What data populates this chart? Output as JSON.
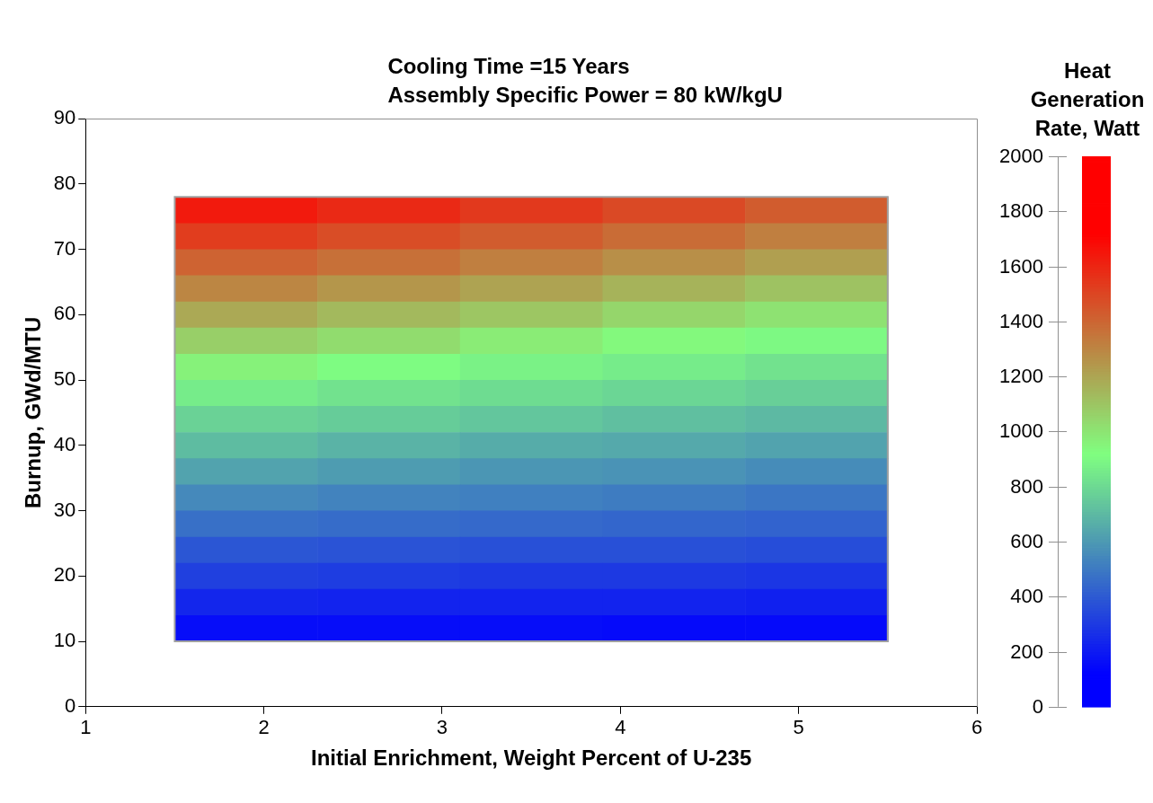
{
  "chart_data": {
    "type": "heatmap",
    "title": "Cooling Time =15 Years",
    "subtitle": "Assembly Specific Power = 80 kW/kgU",
    "xlabel": "Initial Enrichment, Weight Percent of U-235",
    "ylabel": "Burnup, GWd/MTU",
    "clabel": "Heat Generation Rate, Watt",
    "x": [
      1.9,
      2.7,
      3.5,
      4.3,
      5.1
    ],
    "y": [
      76,
      72,
      68,
      64,
      60,
      56,
      52,
      48,
      44,
      40,
      36,
      32,
      28,
      24,
      20,
      16,
      12
    ],
    "cells": [
      [
        1640,
        1590,
        1540,
        1490,
        1430
      ],
      [
        1530,
        1480,
        1430,
        1380,
        1320
      ],
      [
        1410,
        1370,
        1320,
        1270,
        1220
      ],
      [
        1300,
        1250,
        1210,
        1160,
        1110
      ],
      [
        1190,
        1140,
        1100,
        1050,
        1010
      ],
      [
        1070,
        1030,
        980,
        940,
        900
      ],
      [
        960,
        910,
        880,
        860,
        830
      ],
      [
        860,
        830,
        810,
        790,
        770
      ],
      [
        780,
        760,
        740,
        720,
        700
      ],
      [
        710,
        680,
        660,
        650,
        630
      ],
      [
        630,
        610,
        590,
        580,
        560
      ],
      [
        550,
        530,
        520,
        510,
        490
      ],
      [
        470,
        460,
        450,
        440,
        430
      ],
      [
        390,
        380,
        370,
        370,
        360
      ],
      [
        320,
        310,
        300,
        300,
        290
      ],
      [
        240,
        230,
        230,
        230,
        220
      ],
      [
        160,
        160,
        160,
        150,
        150
      ]
    ],
    "xlim": [
      1,
      6
    ],
    "xticks": [
      1,
      2,
      3,
      4,
      5,
      6
    ],
    "ylim": [
      0,
      90
    ],
    "yticks": [
      0,
      10,
      20,
      30,
      40,
      50,
      60,
      70,
      80,
      90
    ],
    "clim": [
      0,
      2000
    ],
    "cticks": [
      0,
      200,
      400,
      600,
      800,
      1000,
      1200,
      1400,
      1600,
      1800,
      2000
    ],
    "grid": false,
    "legend": false
  }
}
